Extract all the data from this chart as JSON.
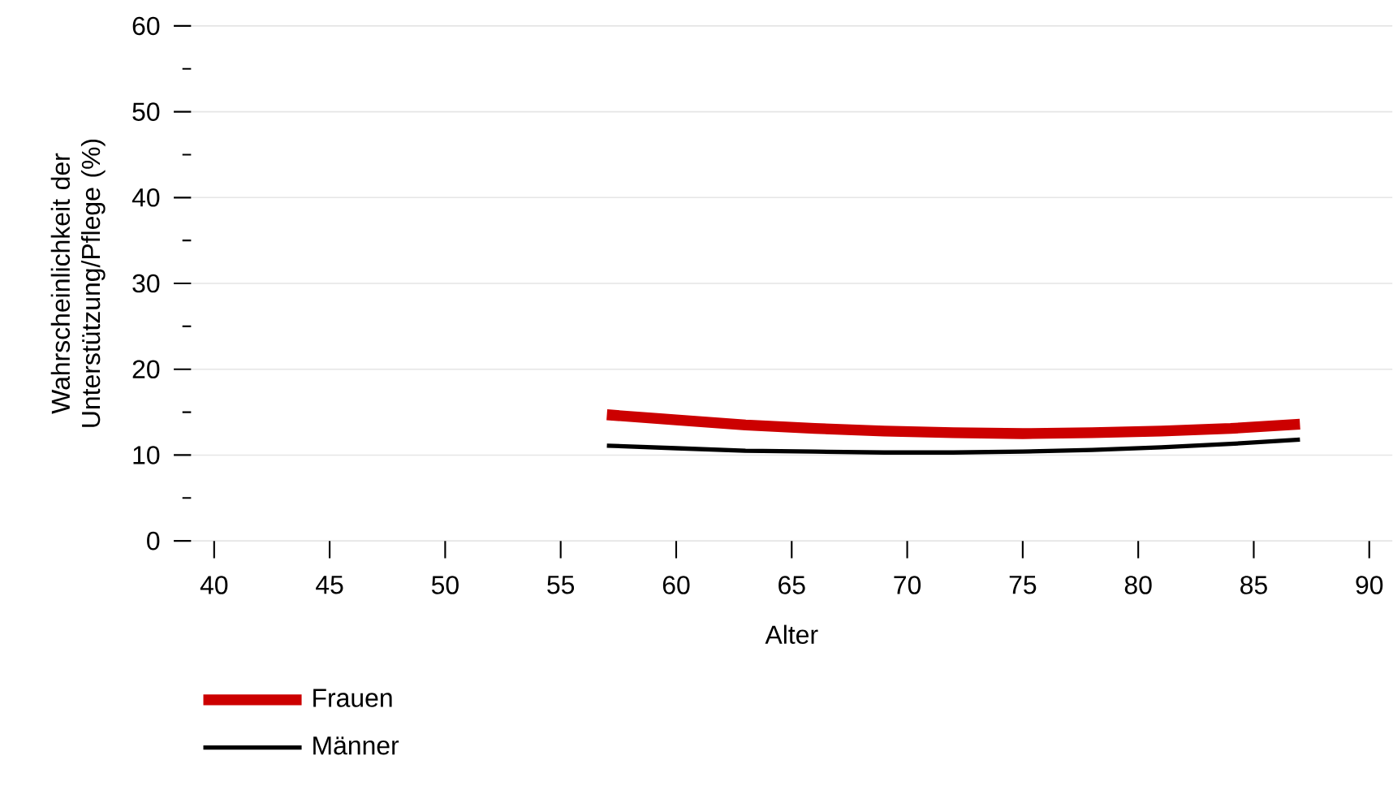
{
  "chart_data": {
    "type": "line",
    "xlabel": "Alter",
    "ylabel": "Wahrscheinlichkeit der Unterstützung/Pflege (%)",
    "xlim": [
      39,
      91
    ],
    "xticks": [
      40,
      45,
      50,
      55,
      60,
      65,
      70,
      75,
      80,
      85,
      90
    ],
    "ylim": [
      0,
      60
    ],
    "yticks": [
      0,
      {
        "value": 5,
        "label": null
      },
      10,
      {
        "value": 15,
        "label": null
      },
      20,
      {
        "value": 25,
        "label": null
      },
      30,
      {
        "value": 35,
        "label": null
      },
      40,
      {
        "value": 45,
        "label": null
      },
      50,
      {
        "value": 55,
        "label": null
      },
      60
    ],
    "grid": "y",
    "legend": "bottom left",
    "marker": "none",
    "line_style": "solid",
    "series": [
      {
        "name": "Frauen",
        "color": "#cc0000",
        "x": [
          57,
          60,
          63,
          66,
          69,
          72,
          75,
          78,
          81,
          84,
          87
        ],
        "values": [
          14.7,
          14.1,
          13.5,
          13.1,
          12.8,
          12.6,
          12.5,
          12.6,
          12.8,
          13.1,
          13.6
        ]
      },
      {
        "name": "Männer",
        "color": "#000000",
        "x": [
          57,
          60,
          63,
          66,
          69,
          72,
          75,
          78,
          81,
          84,
          87
        ],
        "values": [
          11.1,
          10.8,
          10.5,
          10.4,
          10.3,
          10.3,
          10.4,
          10.6,
          10.9,
          11.3,
          11.8
        ]
      }
    ]
  }
}
